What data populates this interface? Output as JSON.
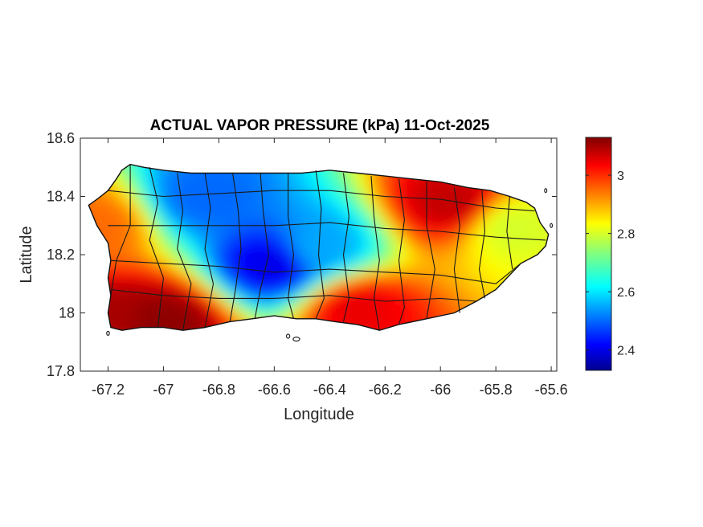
{
  "chart_data": {
    "type": "heatmap",
    "title": "ACTUAL VAPOR PRESSURE (kPa) 11-Oct-2025",
    "xlabel": "Longitude",
    "ylabel": "Latitude",
    "xlim": [
      -67.3,
      -65.58
    ],
    "ylim": [
      17.8,
      18.6
    ],
    "xticks": [
      -67.2,
      -67,
      -66.8,
      -66.6,
      -66.4,
      -66.2,
      -66,
      -65.8,
      -65.6
    ],
    "xtick_labels": [
      "-67.2",
      "-67",
      "-66.8",
      "-66.6",
      "-66.4",
      "-66.2",
      "-66",
      "-65.8",
      "-65.6"
    ],
    "yticks": [
      17.8,
      18,
      18.2,
      18.4,
      18.6
    ],
    "ytick_labels": [
      "17.8",
      "18",
      "18.2",
      "18.4",
      "18.6"
    ],
    "colorbar": {
      "colormap": "jet",
      "range": [
        2.33,
        3.13
      ],
      "ticks": [
        2.4,
        2.6,
        2.8,
        3
      ],
      "tick_labels": [
        "2.4",
        "2.6",
        "2.8",
        "3"
      ]
    },
    "grid": false,
    "region": "Puerto Rico",
    "field_summary": [
      {
        "lon": -67.2,
        "lat": 17.98,
        "value": 3.1
      },
      {
        "lon": -67.0,
        "lat": 17.97,
        "value": 3.12
      },
      {
        "lon": -66.85,
        "lat": 18.4,
        "value": 2.5
      },
      {
        "lon": -66.6,
        "lat": 18.17,
        "value": 2.4
      },
      {
        "lon": -66.45,
        "lat": 18.22,
        "value": 2.55
      },
      {
        "lon": -66.3,
        "lat": 18.02,
        "value": 3.05
      },
      {
        "lon": -65.95,
        "lat": 18.38,
        "value": 3.08
      },
      {
        "lon": -65.75,
        "lat": 18.3,
        "value": 2.8
      },
      {
        "lon": -67.25,
        "lat": 18.3,
        "value": 2.95
      }
    ]
  }
}
